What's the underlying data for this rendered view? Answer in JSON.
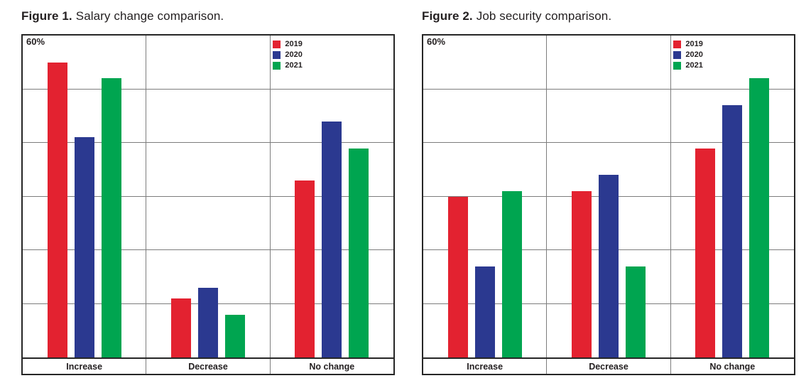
{
  "page": {
    "background": "#ffffff"
  },
  "chart_data": [
    {
      "type": "bar",
      "figure_label": "Figure 1.",
      "title": "Salary change comparison.",
      "categories": [
        "Increase",
        "Decrease",
        "No change"
      ],
      "series": [
        {
          "name": "2019",
          "color": "#e32230",
          "values": [
            55,
            11,
            33
          ]
        },
        {
          "name": "2020",
          "color": "#2b3990",
          "values": [
            41,
            13,
            44
          ]
        },
        {
          "name": "2021",
          "color": "#00a550",
          "values": [
            52,
            8,
            39
          ]
        }
      ],
      "ylim": [
        0,
        60
      ],
      "ytick_interval": 10,
      "ymax_label": "60%",
      "grid": true,
      "legend_position": "inside-top, at left edge of third column"
    },
    {
      "type": "bar",
      "figure_label": "Figure 2.",
      "title": "Job security comparison.",
      "categories": [
        "Increase",
        "Decrease",
        "No change"
      ],
      "series": [
        {
          "name": "2019",
          "color": "#e32230",
          "values": [
            30,
            31,
            39
          ]
        },
        {
          "name": "2020",
          "color": "#2b3990",
          "values": [
            17,
            34,
            47
          ]
        },
        {
          "name": "2021",
          "color": "#00a550",
          "values": [
            31,
            17,
            52
          ]
        }
      ],
      "ylim": [
        0,
        60
      ],
      "ytick_interval": 10,
      "ymax_label": "60%",
      "grid": true,
      "legend_position": "inside-top, at left edge of third column"
    }
  ]
}
